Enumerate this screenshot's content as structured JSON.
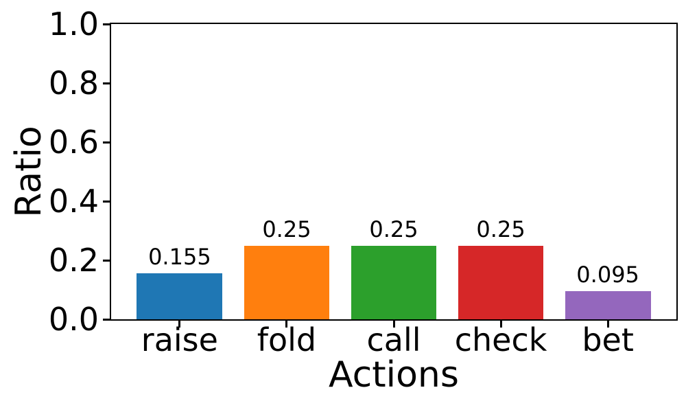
{
  "chart_data": {
    "type": "bar",
    "categories": [
      "raise",
      "fold",
      "call",
      "check",
      "bet"
    ],
    "values": [
      0.155,
      0.25,
      0.25,
      0.25,
      0.095
    ],
    "value_labels": [
      "0.155",
      "0.25",
      "0.25",
      "0.25",
      "0.095"
    ],
    "bar_colors": [
      "#1f77b4",
      "#ff7f0e",
      "#2ca02c",
      "#d62728",
      "#9467bd"
    ],
    "title": "",
    "xlabel": "Actions",
    "ylabel": "Ratio",
    "ylim": [
      0.0,
      1.0
    ],
    "yticks": [
      0.0,
      0.2,
      0.4,
      0.6,
      0.8,
      1.0
    ],
    "ytick_labels": [
      "0.0",
      "0.2",
      "0.4",
      "0.6",
      "0.8",
      "1.0"
    ],
    "xlim": [
      -0.64,
      4.64
    ],
    "bar_width_data_units": 0.8,
    "grid": false,
    "legend": false,
    "background_color": "#ffffff",
    "spine_color": "#000000",
    "text_color": "#000000"
  }
}
